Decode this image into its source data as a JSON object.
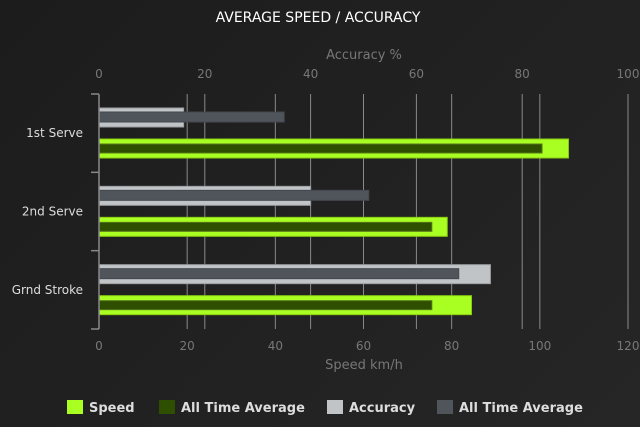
{
  "chart_data": {
    "type": "bar",
    "orientation": "horizontal",
    "title": "AVERAGE SPEED / ACCURACY",
    "categories": [
      "1st Serve",
      "2nd Serve",
      "Grnd Stroke"
    ],
    "top_axis": {
      "label": "Accuracy %",
      "range": [
        0,
        100
      ],
      "ticks": [
        0,
        20,
        40,
        60,
        80,
        100
      ]
    },
    "bottom_axis": {
      "label": "Speed km/h",
      "range": [
        0,
        120
      ],
      "ticks": [
        0,
        20,
        40,
        60,
        80,
        100,
        120
      ]
    },
    "grid": true,
    "legend_position": "bottom",
    "series": [
      {
        "name": "Speed",
        "axis": "bottom",
        "color": "#aaff22",
        "values": [
          106.5,
          79,
          84.5
        ]
      },
      {
        "name": "All Time Average",
        "axis": "bottom",
        "color": "#2f4f00",
        "values": [
          100.5,
          75.5,
          75.5
        ]
      },
      {
        "name": "Accuracy",
        "axis": "top",
        "color": "#c0c4c7",
        "values": [
          16,
          40,
          74
        ]
      },
      {
        "name": "All Time Average",
        "axis": "top",
        "color": "#50555c",
        "values": [
          35,
          51,
          68
        ]
      }
    ]
  }
}
